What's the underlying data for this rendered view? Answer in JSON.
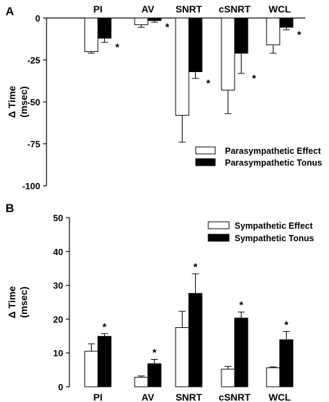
{
  "chart_data": [
    {
      "panel_label": "A",
      "type": "bar",
      "categories": [
        "PI",
        "AV",
        "SNRT",
        "cSNRT",
        "WCL"
      ],
      "ylabel": "Δ Time (msec)",
      "ylim": [
        -100,
        0
      ],
      "yticks": [
        0,
        -25,
        -50,
        -75,
        -100
      ],
      "ytick_labels": [
        "0",
        "-25",
        "-50",
        "-75",
        "-100"
      ],
      "category_labels_position": "top",
      "grid": false,
      "legend_position": "bottom-right",
      "series": [
        {
          "name": "Parasympathetic Effect",
          "fill": "#ffffff",
          "values": [
            -20,
            -4,
            -58,
            -43,
            -16
          ],
          "errors": [
            1,
            1.5,
            16,
            14,
            5
          ],
          "significant": [
            false,
            false,
            false,
            false,
            false
          ]
        },
        {
          "name": "Parasympathetic Tonus",
          "fill": "#000000",
          "values": [
            -12,
            -1.5,
            -32,
            -21,
            -5.5
          ],
          "errors": [
            2.5,
            1,
            4,
            12,
            1.5
          ],
          "significant": [
            true,
            true,
            true,
            true,
            true
          ]
        }
      ],
      "significance_marker": "*"
    },
    {
      "panel_label": "B",
      "type": "bar",
      "categories": [
        "PI",
        "AV",
        "SNRT",
        "cSNRT",
        "WCL"
      ],
      "ylabel": "Δ Time (msec)",
      "ylim": [
        0,
        50
      ],
      "yticks": [
        0,
        10,
        20,
        30,
        40,
        50
      ],
      "ytick_labels": [
        "0",
        "10",
        "20",
        "30",
        "40",
        "50"
      ],
      "category_labels_position": "bottom",
      "grid": false,
      "legend_position": "top-right",
      "series": [
        {
          "name": "Sympathetic Effect",
          "fill": "#ffffff",
          "values": [
            10.5,
            2.8,
            17.5,
            5.2,
            5.6
          ],
          "errors": [
            2.2,
            0.4,
            4.8,
            0.8,
            0.3
          ],
          "significant": [
            false,
            false,
            false,
            false,
            false
          ]
        },
        {
          "name": "Sympathetic Tonus",
          "fill": "#000000",
          "values": [
            14.9,
            6.8,
            27.6,
            20.3,
            13.9
          ],
          "errors": [
            0.8,
            1.3,
            5.8,
            1.8,
            2.4
          ],
          "significant": [
            true,
            true,
            true,
            true,
            true
          ]
        }
      ],
      "significance_marker": "*"
    }
  ]
}
